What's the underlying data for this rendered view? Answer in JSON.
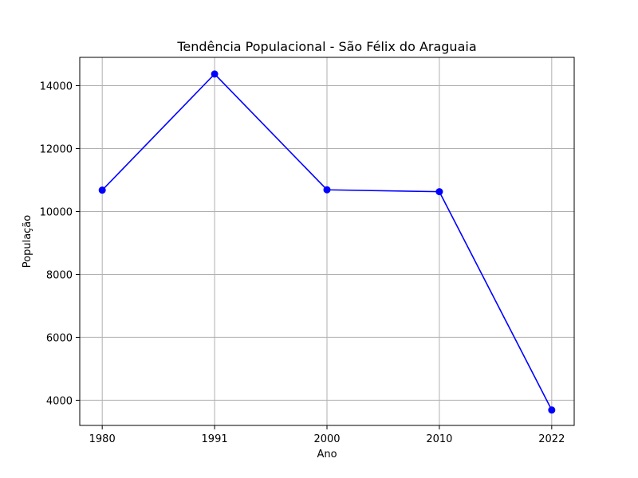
{
  "chart_data": {
    "type": "line",
    "title": "Tendência Populacional - São Félix do Araguaia",
    "xlabel": "Ano",
    "ylabel": "População",
    "categories": [
      "1980",
      "1991",
      "2000",
      "2010",
      "2022"
    ],
    "series": [
      {
        "values": [
          10680,
          14370,
          10690,
          10630,
          3690
        ]
      }
    ],
    "ylim": [
      3200,
      14900
    ],
    "yticks": [
      4000,
      6000,
      8000,
      10000,
      12000,
      14000
    ],
    "grid": true,
    "colors": {
      "line": "#0000ff",
      "marker": "#0000ff",
      "grid": "#b0b0b0"
    }
  }
}
